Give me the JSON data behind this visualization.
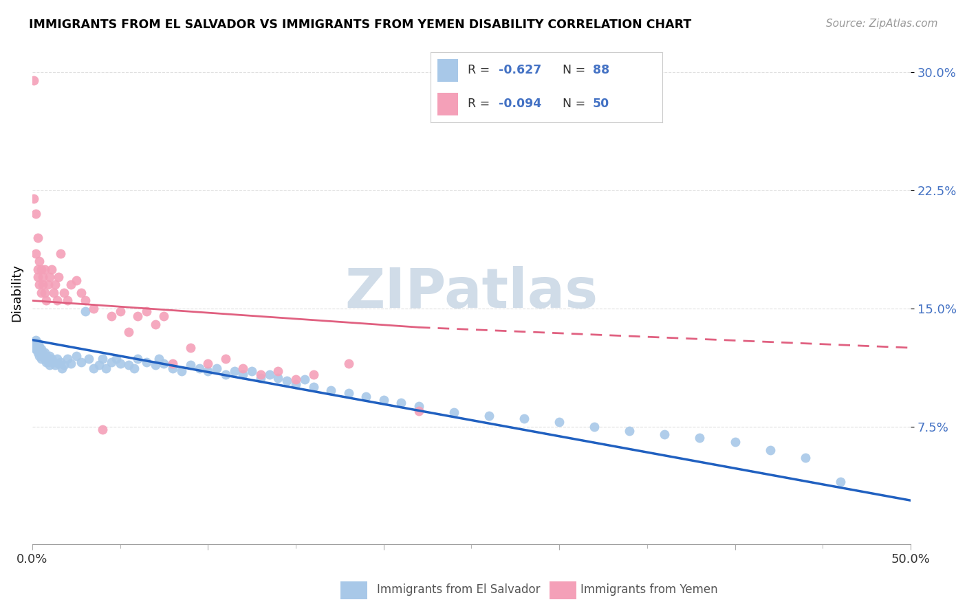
{
  "title": "IMMIGRANTS FROM EL SALVADOR VS IMMIGRANTS FROM YEMEN DISABILITY CORRELATION CHART",
  "source": "Source: ZipAtlas.com",
  "ylabel": "Disability",
  "xlim": [
    0.0,
    0.5
  ],
  "ylim": [
    0.0,
    0.32
  ],
  "yticks": [
    0.075,
    0.15,
    0.225,
    0.3
  ],
  "ytick_labels": [
    "7.5%",
    "15.0%",
    "22.5%",
    "30.0%"
  ],
  "xticks": [
    0.0,
    0.1,
    0.2,
    0.3,
    0.4,
    0.5
  ],
  "xtick_labels": [
    "0.0%",
    "",
    "",
    "",
    "",
    "50.0%"
  ],
  "el_salvador_R": -0.627,
  "el_salvador_N": 88,
  "yemen_R": -0.094,
  "yemen_N": 50,
  "el_salvador_color": "#a8c8e8",
  "yemen_color": "#f4a0b8",
  "el_salvador_line_color": "#2060c0",
  "yemen_line_color": "#e06080",
  "watermark": "ZIPatlas",
  "watermark_color": "#d0dce8",
  "el_salvador_trend_x0": 0.0,
  "el_salvador_trend_y0": 0.13,
  "el_salvador_trend_x1": 0.5,
  "el_salvador_trend_y1": 0.028,
  "yemen_trend_solid_x0": 0.0,
  "yemen_trend_solid_y0": 0.155,
  "yemen_trend_solid_x1": 0.22,
  "yemen_trend_solid_y1": 0.138,
  "yemen_trend_dash_x0": 0.22,
  "yemen_trend_dash_y0": 0.138,
  "yemen_trend_dash_x1": 0.5,
  "yemen_trend_dash_y1": 0.125,
  "el_salvador_x": [
    0.001,
    0.001,
    0.002,
    0.002,
    0.002,
    0.003,
    0.003,
    0.003,
    0.003,
    0.004,
    0.004,
    0.004,
    0.005,
    0.005,
    0.005,
    0.006,
    0.006,
    0.007,
    0.007,
    0.008,
    0.008,
    0.009,
    0.009,
    0.01,
    0.01,
    0.011,
    0.012,
    0.013,
    0.014,
    0.015,
    0.016,
    0.017,
    0.018,
    0.02,
    0.022,
    0.025,
    0.028,
    0.03,
    0.032,
    0.035,
    0.038,
    0.04,
    0.042,
    0.045,
    0.048,
    0.05,
    0.055,
    0.058,
    0.06,
    0.065,
    0.07,
    0.072,
    0.075,
    0.08,
    0.085,
    0.09,
    0.095,
    0.1,
    0.105,
    0.11,
    0.115,
    0.12,
    0.125,
    0.13,
    0.135,
    0.14,
    0.145,
    0.15,
    0.155,
    0.16,
    0.17,
    0.18,
    0.19,
    0.2,
    0.21,
    0.22,
    0.24,
    0.26,
    0.28,
    0.3,
    0.32,
    0.34,
    0.36,
    0.38,
    0.4,
    0.42,
    0.44,
    0.46
  ],
  "el_salvador_y": [
    0.127,
    0.125,
    0.13,
    0.124,
    0.128,
    0.126,
    0.122,
    0.128,
    0.124,
    0.12,
    0.126,
    0.124,
    0.122,
    0.118,
    0.124,
    0.12,
    0.122,
    0.118,
    0.122,
    0.116,
    0.12,
    0.118,
    0.116,
    0.12,
    0.114,
    0.118,
    0.116,
    0.114,
    0.118,
    0.115,
    0.116,
    0.112,
    0.114,
    0.118,
    0.115,
    0.12,
    0.116,
    0.148,
    0.118,
    0.112,
    0.114,
    0.118,
    0.112,
    0.116,
    0.118,
    0.115,
    0.114,
    0.112,
    0.118,
    0.116,
    0.114,
    0.118,
    0.115,
    0.112,
    0.11,
    0.114,
    0.112,
    0.11,
    0.112,
    0.108,
    0.11,
    0.108,
    0.11,
    0.106,
    0.108,
    0.106,
    0.104,
    0.102,
    0.105,
    0.1,
    0.098,
    0.096,
    0.094,
    0.092,
    0.09,
    0.088,
    0.084,
    0.082,
    0.08,
    0.078,
    0.075,
    0.072,
    0.07,
    0.068,
    0.065,
    0.06,
    0.055,
    0.04
  ],
  "yemen_x": [
    0.001,
    0.001,
    0.002,
    0.002,
    0.003,
    0.003,
    0.003,
    0.004,
    0.004,
    0.005,
    0.005,
    0.006,
    0.006,
    0.007,
    0.007,
    0.008,
    0.009,
    0.01,
    0.011,
    0.012,
    0.013,
    0.014,
    0.015,
    0.016,
    0.018,
    0.02,
    0.022,
    0.025,
    0.028,
    0.03,
    0.035,
    0.04,
    0.045,
    0.05,
    0.055,
    0.06,
    0.065,
    0.07,
    0.075,
    0.08,
    0.09,
    0.1,
    0.11,
    0.12,
    0.13,
    0.14,
    0.15,
    0.16,
    0.18,
    0.22
  ],
  "yemen_y": [
    0.295,
    0.22,
    0.185,
    0.21,
    0.195,
    0.175,
    0.17,
    0.18,
    0.165,
    0.175,
    0.16,
    0.17,
    0.165,
    0.175,
    0.16,
    0.155,
    0.165,
    0.17,
    0.175,
    0.16,
    0.165,
    0.155,
    0.17,
    0.185,
    0.16,
    0.155,
    0.165,
    0.168,
    0.16,
    0.155,
    0.15,
    0.073,
    0.145,
    0.148,
    0.135,
    0.145,
    0.148,
    0.14,
    0.145,
    0.115,
    0.125,
    0.115,
    0.118,
    0.112,
    0.108,
    0.11,
    0.105,
    0.108,
    0.115,
    0.085
  ]
}
